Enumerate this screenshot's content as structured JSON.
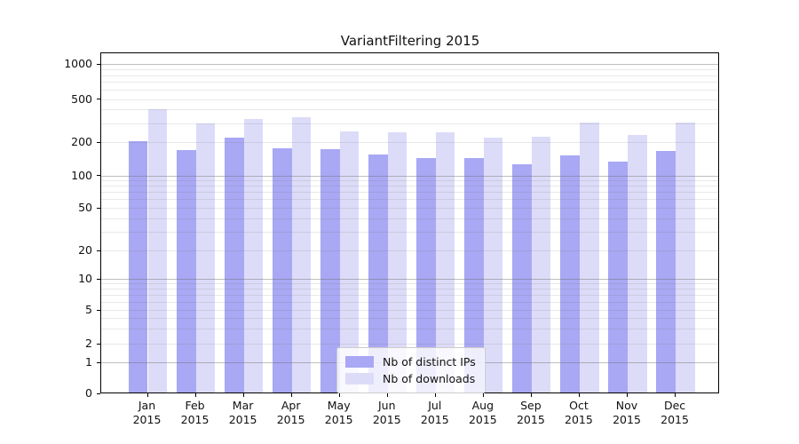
{
  "figure_title": "VariantFiltering 2015",
  "chart_data": {
    "type": "bar",
    "title": "VariantFiltering 2015",
    "categories": [
      "Jan 2015",
      "Feb 2015",
      "Mar 2015",
      "Apr 2015",
      "May 2015",
      "Jun 2015",
      "Jul 2015",
      "Aug 2015",
      "Sep 2015",
      "Oct 2015",
      "Nov 2015",
      "Dec 2015"
    ],
    "series": [
      {
        "name": "Nb of distinct IPs",
        "color": "#a8a8f4",
        "values": [
          205,
          170,
          220,
          177,
          172,
          155,
          143,
          143,
          127,
          153,
          133,
          167
        ]
      },
      {
        "name": "Nb of downloads",
        "color": "#dcdcf8",
        "values": [
          405,
          300,
          325,
          337,
          252,
          247,
          246,
          221,
          226,
          302,
          231,
          302
        ]
      }
    ],
    "yscale": "symlog",
    "yticks": [
      0,
      1,
      2,
      5,
      10,
      20,
      50,
      100,
      200,
      500,
      1000
    ],
    "ylim": [
      0,
      1100
    ],
    "xlabel": "",
    "ylabel": "",
    "grid": "both",
    "legend_position": "lower center"
  }
}
